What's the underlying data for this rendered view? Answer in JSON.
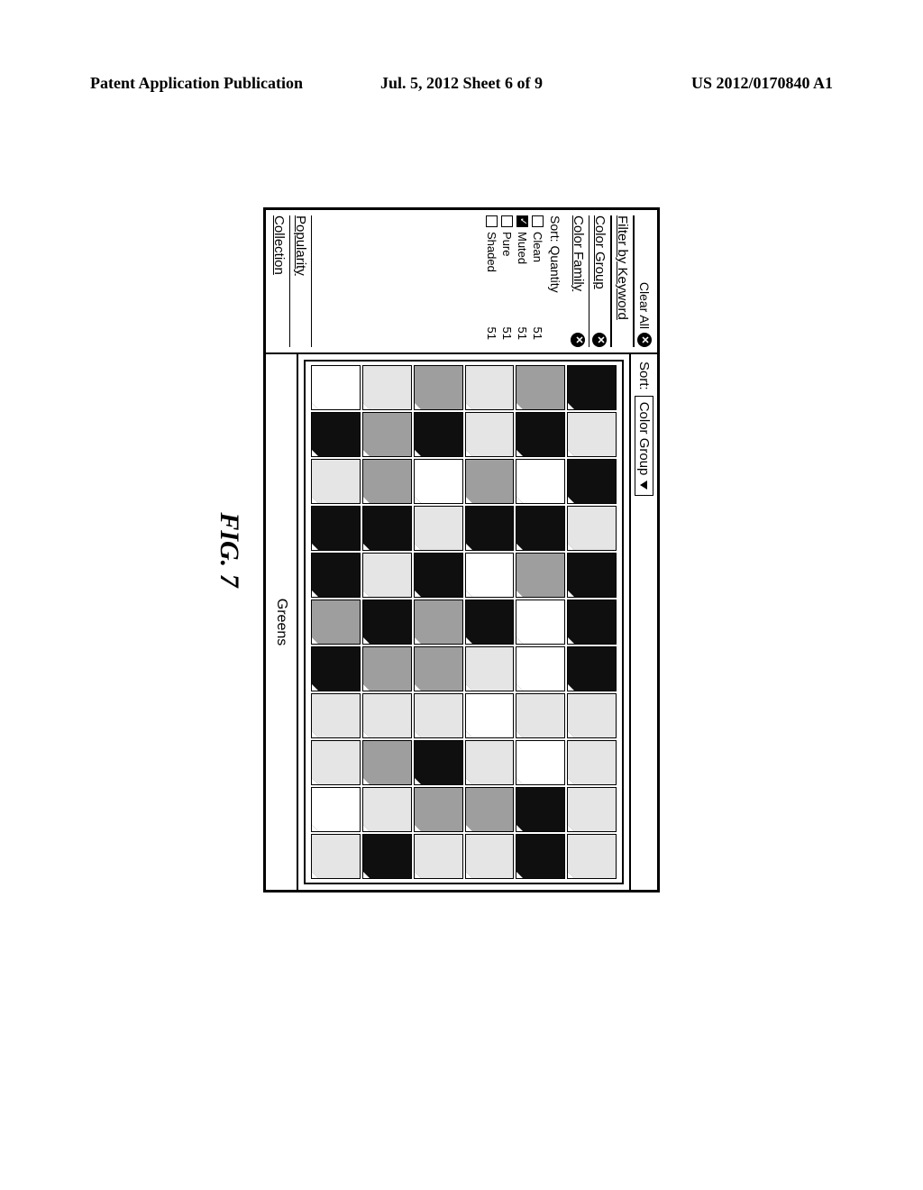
{
  "page_header": {
    "left": "Patent Application Publication",
    "center": "Jul. 5, 2012   Sheet 6 of 9",
    "right": "US 2012/0170840 A1"
  },
  "figure_label": "FIG. 7",
  "sidebar": {
    "clear_all": "Clear All",
    "filter_by_keyword": "Filter by Keyword",
    "color_group": "Color Group",
    "color_family": "Color Family",
    "sort_label": "Sort:",
    "sort_value": "Quantity",
    "options": [
      {
        "label": "Clean",
        "qty": "51",
        "checked": false
      },
      {
        "label": "Muted",
        "qty": "51",
        "checked": true
      },
      {
        "label": "Pure",
        "qty": "51",
        "checked": false
      },
      {
        "label": "Shaded",
        "qty": "51",
        "checked": false
      }
    ],
    "popularity": "Popularity",
    "collection": "Collection"
  },
  "toolbar": {
    "sort_label": "Sort:",
    "sort_value": "Color Group"
  },
  "footer": {
    "label": "Greens"
  },
  "swatch_grid": {
    "cols": 11,
    "rows": 6,
    "palette": {
      "d": "#0f0f0f",
      "g": "#9e9e9e",
      "l": "#e5e5e5",
      "w": "#ffffff"
    },
    "cells": [
      "d",
      "l",
      "d",
      "l",
      "d",
      "d",
      "d",
      "l",
      "l",
      "l",
      "l",
      "g",
      "d",
      "w",
      "d",
      "g",
      "w",
      "w",
      "l",
      "w",
      "d",
      "d",
      "l",
      "l",
      "g",
      "d",
      "w",
      "d",
      "l",
      "w",
      "l",
      "g",
      "l",
      "g",
      "d",
      "w",
      "l",
      "d",
      "g",
      "g",
      "l",
      "d",
      "g",
      "l",
      "l",
      "g",
      "g",
      "d",
      "l",
      "d",
      "g",
      "l",
      "g",
      "l",
      "d",
      "w",
      "d",
      "l",
      "d",
      "d",
      "g",
      "d",
      "l",
      "l",
      "w",
      "l"
    ]
  }
}
